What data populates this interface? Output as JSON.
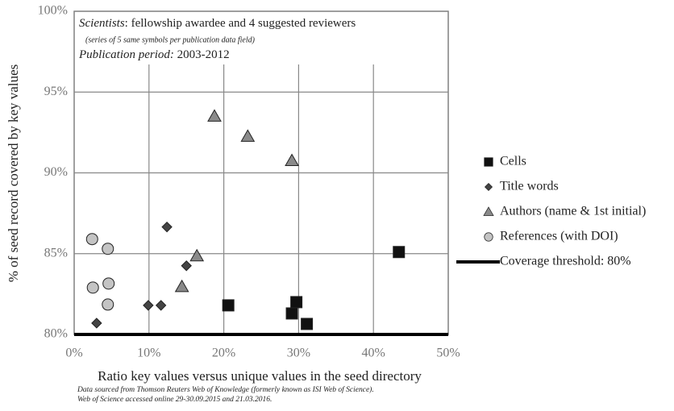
{
  "chart_data": {
    "type": "scatter",
    "annotations": {
      "line1_italic": "Scientists",
      "line1_rest": ": fellowship awardee and 4 suggested reviewers",
      "line2": "(series of 5 same symbols per publication data field)",
      "line3_italic": "Publication period:",
      "line3_rest": " 2003-2012"
    },
    "x_label": "Ratio key values versus unique values in the seed directory",
    "y_label": "% of seed record covered by key values",
    "source": [
      "Data sourced from Thomson Reuters Web of Knowledge (formerly known as ISI Web of Science).",
      "Web of Science accessed online 29-30.09.2015 and 21.03.2016."
    ],
    "xlim": [
      0,
      50
    ],
    "ylim": [
      80,
      100
    ],
    "xticks": [
      {
        "value": 0,
        "label": "0%"
      },
      {
        "value": 10,
        "label": "10%"
      },
      {
        "value": 20,
        "label": "20%"
      },
      {
        "value": 30,
        "label": "30%"
      },
      {
        "value": 40,
        "label": "40%"
      },
      {
        "value": 50,
        "label": "50%"
      }
    ],
    "yticks": [
      {
        "value": 80,
        "label": "80%"
      },
      {
        "value": 85,
        "label": "85%"
      },
      {
        "value": 90,
        "label": "90%"
      },
      {
        "value": 95,
        "label": "95%"
      },
      {
        "value": 100,
        "label": "100%"
      }
    ],
    "grid": true,
    "series": [
      {
        "name": "Cells",
        "marker": "square",
        "color": "#111111",
        "x": [
          20.6,
          29.7,
          29.1,
          31.1,
          43.4
        ],
        "values": [
          81.8,
          82.0,
          81.3,
          80.65,
          85.1
        ]
      },
      {
        "name": "Title words",
        "marker": "diamond",
        "color": "#444444",
        "x": [
          3.0,
          9.9,
          11.6,
          15.0,
          12.4
        ],
        "values": [
          80.7,
          81.8,
          81.8,
          84.25,
          86.65
        ]
      },
      {
        "name": "Authors (name & 1st initial)",
        "marker": "triangle",
        "color": "#8a8a8a",
        "x": [
          18.75,
          23.2,
          29.1,
          16.4,
          14.4
        ],
        "values": [
          93.5,
          92.25,
          90.75,
          84.85,
          82.95
        ]
      },
      {
        "name": "References (with DOI)",
        "marker": "circle",
        "color": "#c4c4c4",
        "x": [
          2.4,
          4.5,
          2.5,
          4.6,
          4.5
        ],
        "values": [
          85.9,
          85.3,
          82.9,
          83.15,
          81.85
        ]
      }
    ],
    "threshold": {
      "name": "Coverage threshold: 80%",
      "value": 80,
      "color": "#000000"
    }
  }
}
